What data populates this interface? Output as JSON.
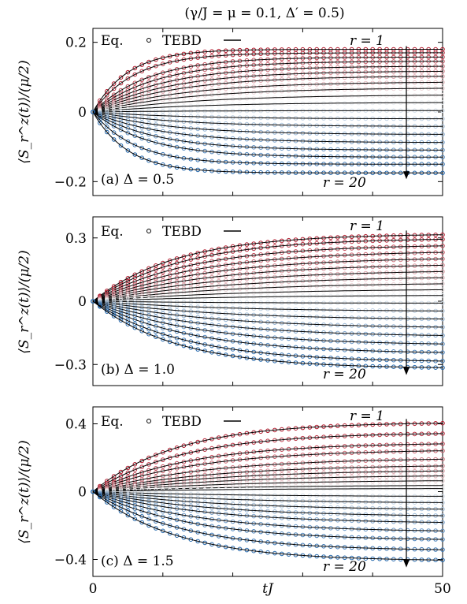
{
  "figure": {
    "title": "(γ/J = μ = 0.1, Δ′ = 0.5)",
    "xlabel": "tJ",
    "ylabel": "⟨S_r^z(t)⟩/(μ/2)",
    "legend": {
      "eq_label": "Eq.",
      "tebd_label": "TEBD"
    },
    "colors": {
      "top": "#b2182b",
      "middle": "#f7f7f7",
      "bottom": "#2166ac",
      "tebd_line": "#000000"
    }
  },
  "chart_data": [
    {
      "type": "line",
      "panel_label": "(a) Δ = 0.5",
      "r_top_label": "r = 1",
      "r_bottom_label": "r = 20",
      "xlim": [
        0,
        50
      ],
      "ylim": [
        -0.24,
        0.24
      ],
      "yticks": [
        0.2,
        0,
        -0.2
      ],
      "ytick_labels": [
        "0.2",
        "0",
        "−0.2"
      ],
      "xticks": [
        0,
        50
      ],
      "xtick_labels": [
        "0",
        "50"
      ],
      "site_final_values": [
        0.18,
        0.17,
        0.158,
        0.146,
        0.132,
        0.118,
        0.104,
        0.087,
        0.07,
        0.05,
        0.028,
        0.004,
        -0.02,
        -0.042,
        -0.065,
        -0.088,
        -0.11,
        -0.13,
        -0.15,
        -0.175
      ],
      "site_rise_time": [
        5,
        6,
        8,
        9,
        10,
        11,
        12,
        13,
        14,
        15,
        15,
        14,
        13,
        12,
        11,
        10,
        9,
        8,
        6,
        5
      ]
    },
    {
      "type": "line",
      "panel_label": "(b) Δ = 1.0",
      "r_top_label": "r = 1",
      "r_bottom_label": "r = 20",
      "xlim": [
        0,
        50
      ],
      "ylim": [
        -0.4,
        0.4
      ],
      "yticks": [
        0.3,
        0,
        -0.3
      ],
      "ytick_labels": [
        "0.3",
        "0",
        "−0.3"
      ],
      "xticks": [
        0,
        50
      ],
      "xtick_labels": [
        "0",
        "50"
      ],
      "site_final_values": [
        0.32,
        0.3,
        0.27,
        0.24,
        0.21,
        0.18,
        0.15,
        0.12,
        0.09,
        0.06,
        0.03,
        -0.01,
        -0.05,
        -0.09,
        -0.13,
        -0.17,
        -0.21,
        -0.25,
        -0.29,
        -0.32
      ],
      "site_rise_time": [
        12,
        13,
        14,
        15,
        16,
        17,
        18,
        19,
        20,
        21,
        21,
        20,
        19,
        18,
        17,
        16,
        15,
        14,
        13,
        12
      ]
    },
    {
      "type": "line",
      "panel_label": "(c) Δ = 1.5",
      "r_top_label": "r = 1",
      "r_bottom_label": "r = 20",
      "xlim": [
        0,
        50
      ],
      "ylim": [
        -0.5,
        0.5
      ],
      "yticks": [
        0.4,
        0,
        -0.4
      ],
      "ytick_labels": [
        "0.4",
        "0",
        "−0.4"
      ],
      "xticks": [
        0,
        50
      ],
      "xtick_labels": [
        "0",
        "50"
      ],
      "site_final_values": [
        0.41,
        0.35,
        0.29,
        0.25,
        0.2,
        0.16,
        0.13,
        0.1,
        0.07,
        0.04,
        0.02,
        -0.03,
        -0.07,
        -0.11,
        -0.15,
        -0.19,
        -0.24,
        -0.29,
        -0.35,
        -0.41
      ],
      "site_rise_time": [
        12,
        13,
        14,
        15,
        16,
        17,
        18,
        19,
        20,
        21,
        21,
        20,
        19,
        18,
        17,
        16,
        15,
        14,
        13,
        12
      ]
    }
  ]
}
